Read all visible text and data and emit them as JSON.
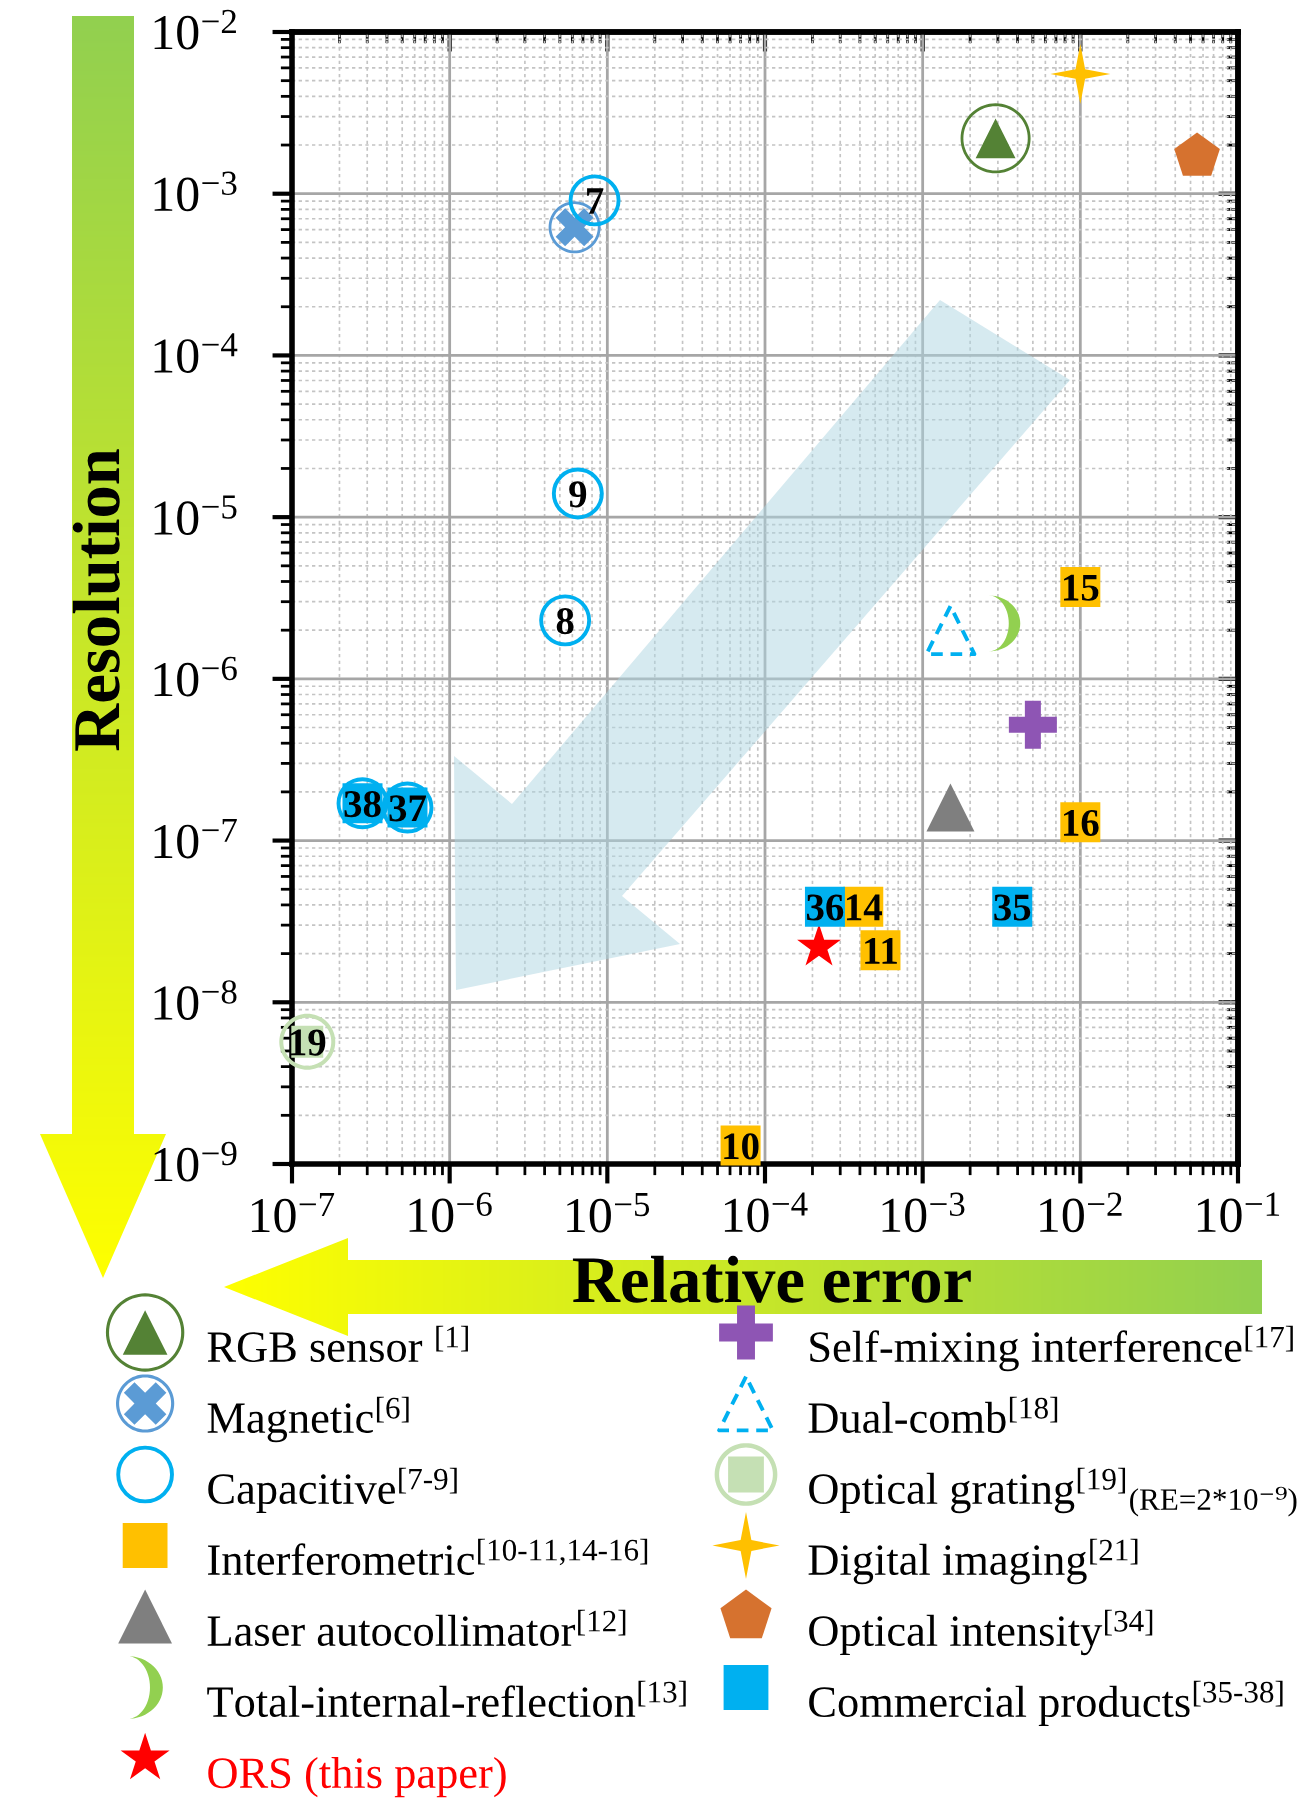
{
  "chart_data": {
    "type": "scatter",
    "xlabel": "Relative error",
    "ylabel": "Resolution",
    "log": "xy",
    "xlim": [
      1e-07,
      0.1
    ],
    "ylim": [
      1e-09,
      0.01
    ],
    "xticks": [
      {
        "value": 1e-07,
        "label": "10$^{−7}$"
      },
      {
        "value": 1e-06,
        "label": "10$^{−6}$"
      },
      {
        "value": 1e-05,
        "label": "10$^{−5}$"
      },
      {
        "value": 0.0001,
        "label": "10$^{−4}$"
      },
      {
        "value": 0.001,
        "label": "10$^{−3}$"
      },
      {
        "value": 0.01,
        "label": "10$^{−2}$"
      },
      {
        "value": 0.1,
        "label": "10$^{−1}$"
      }
    ],
    "yticks": [
      {
        "value": 1e-09,
        "label": "10$^{−9}$"
      },
      {
        "value": 1e-08,
        "label": "10$^{−8}$"
      },
      {
        "value": 1e-07,
        "label": "10$^{−7}$"
      },
      {
        "value": 1e-06,
        "label": "10$^{−6}$"
      },
      {
        "value": 1e-05,
        "label": "10$^{−5}$"
      },
      {
        "value": 0.0001,
        "label": "10$^{−4}$"
      },
      {
        "value": 0.001,
        "label": "10$^{−3}$"
      },
      {
        "value": 0.01,
        "label": "10$^{−2}$"
      }
    ],
    "grid": true,
    "legend": "bottom",
    "series": [
      {
        "name": "RGB sensor $^{[1]}$",
        "color": "#548235",
        "x": [
          0.0029
        ],
        "values": [
          0.0022
        ]
      },
      {
        "name": "Magnetic$^{[6]}$",
        "color": "#5b9bd5",
        "x": [
          6.2e-06
        ],
        "values": [
          0.00062
        ]
      },
      {
        "name": "Capacitive$^{[7-9]}$",
        "color": "#00b0f0",
        "marker": "circle",
        "x": [
          8.3e-06,
          5.4e-06,
          6.5e-06,
          2.8e-07,
          5.4e-07
        ],
        "values": [
          0.00091,
          2.3e-06,
          1.4e-05,
          1.7e-07,
          1.6e-07
        ]
      },
      {
        "name": "Interferometric$^{[10-11,14-16]}$",
        "color": "#ffc000",
        "marker": "square",
        "x": [
          7e-05,
          0.00054,
          0.00042,
          0.01,
          0.01
        ],
        "values": [
          1.3e-09,
          2.1e-08,
          3.9e-08,
          3.7e-06,
          1.3e-07
        ]
      },
      {
        "name": "Laser autocollimator$^{[12]}$",
        "color": "#7f7f7f",
        "marker": "triangle",
        "x": [
          0.0015
        ],
        "values": [
          1.6e-07
        ]
      },
      {
        "name": "Total-internal-reflection$^{[13]}$",
        "color": "#92d050",
        "x": [
          0.0033
        ],
        "values": [
          2.2e-06
        ]
      },
      {
        "name": "ORS (this paper)",
        "color": "#ff0000",
        "marker": "star",
        "x": [
          0.00022
        ],
        "values": [
          2.2e-08
        ]
      },
      {
        "name": "Self-mixing interference$^{[17]}$",
        "color": "#8e55b4",
        "marker": "cross",
        "x": [
          0.005
        ],
        "values": [
          5.2e-07
        ]
      },
      {
        "name": "Dual-comb$^{[18]}$",
        "color": "#00b0f0",
        "marker": "triangle",
        "line_style": "dashed",
        "x": [
          0.0015
        ],
        "values": [
          2e-06
        ]
      },
      {
        "name": "Optical grating$^{[19]}$$_{(RE=2*10⁻⁹)}$",
        "color": "#c5e0b4",
        "x": [
          1.25e-07
        ],
        "values": [
          5.7e-09
        ]
      },
      {
        "name": "Digital imaging$^{[21]}$",
        "color": "#ffc000",
        "x": [
          0.01
        ],
        "values": [
          0.0055
        ]
      },
      {
        "name": "Optical intensity$^{[34]}$",
        "color": "#d6722f",
        "x": [
          0.055
        ],
        "values": [
          0.0017
        ]
      },
      {
        "name": "Commercial products$^{[35-38]}$",
        "color": "#00b0f0",
        "marker": "square",
        "x": [
          0.0037,
          0.00024,
          5.4e-07,
          2.8e-07
        ],
        "values": [
          3.9e-08,
          3.9e-08,
          1.6e-07,
          1.7e-07
        ]
      }
    ],
    "annotations": [
      {
        "text": "7",
        "x": 8.3e-06,
        "y": 0.00091
      },
      {
        "text": "8",
        "x": 5.4e-06,
        "y": 2.3e-06
      },
      {
        "text": "9",
        "x": 6.5e-06,
        "y": 1.4e-05
      },
      {
        "text": "10",
        "x": 7e-05,
        "y": 1.3e-09
      },
      {
        "text": "11",
        "x": 0.00054,
        "y": 2.1e-08
      },
      {
        "text": "14",
        "x": 0.00042,
        "y": 3.9e-08
      },
      {
        "text": "15",
        "x": 0.01,
        "y": 3.7e-06
      },
      {
        "text": "16",
        "x": 0.01,
        "y": 1.3e-07
      },
      {
        "text": "19",
        "x": 1.25e-07,
        "y": 5.7e-09
      },
      {
        "text": "35",
        "x": 0.0037,
        "y": 3.9e-08
      },
      {
        "text": "36",
        "x": 0.00024,
        "y": 3.9e-08
      },
      {
        "text": "37",
        "x": 5.4e-07,
        "y": 1.6e-07
      },
      {
        "text": "38",
        "x": 2.8e-07,
        "y": 1.7e-07
      }
    ]
  }
}
